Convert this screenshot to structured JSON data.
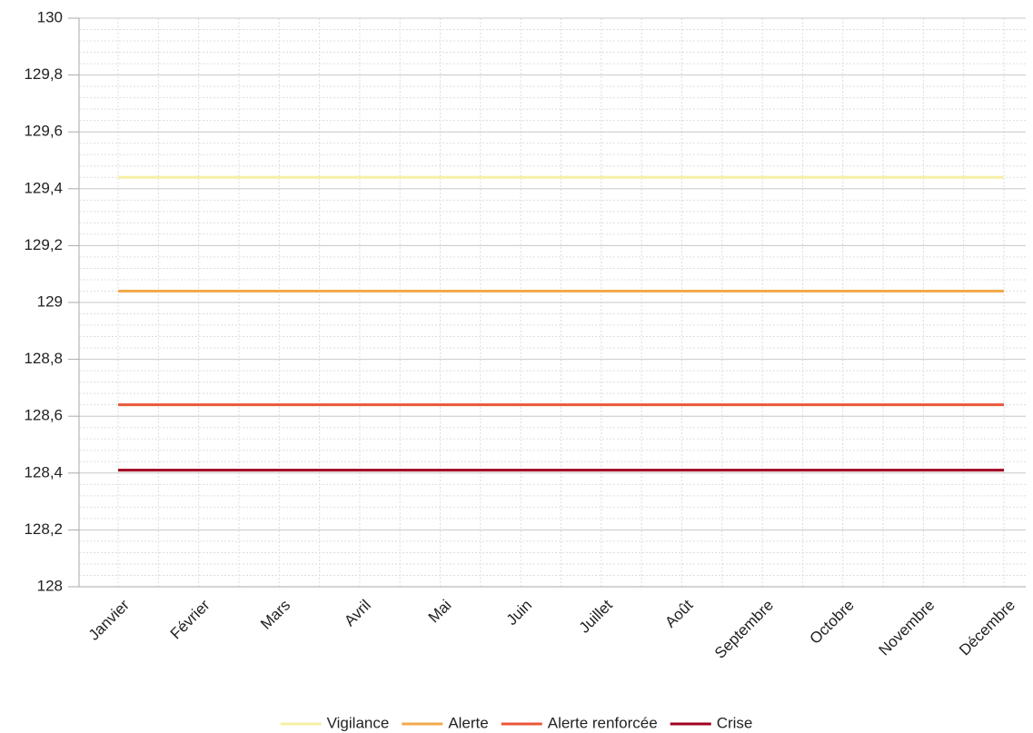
{
  "chart_data": {
    "type": "line",
    "categories": [
      "Janvier",
      "Février",
      "Mars",
      "Avril",
      "Mai",
      "Juin",
      "Juillet",
      "Août",
      "Septembre",
      "Octobre",
      "Novembre",
      "Décembre"
    ],
    "series": [
      {
        "name": "Vigilance",
        "color": "#f7efa6",
        "values": [
          129.44,
          129.44,
          129.44,
          129.44,
          129.44,
          129.44,
          129.44,
          129.44,
          129.44,
          129.44,
          129.44,
          129.44
        ]
      },
      {
        "name": "Alerte",
        "color": "#f2aa4c",
        "values": [
          129.04,
          129.04,
          129.04,
          129.04,
          129.04,
          129.04,
          129.04,
          129.04,
          129.04,
          129.04,
          129.04,
          129.04
        ]
      },
      {
        "name": "Alerte renforcée",
        "color": "#e9573a",
        "values": [
          128.64,
          128.64,
          128.64,
          128.64,
          128.64,
          128.64,
          128.64,
          128.64,
          128.64,
          128.64,
          128.64,
          128.64
        ]
      },
      {
        "name": "Crise",
        "color": "#a0001f",
        "values": [
          128.41,
          128.41,
          128.41,
          128.41,
          128.41,
          128.41,
          128.41,
          128.41,
          128.41,
          128.41,
          128.41,
          128.41
        ]
      }
    ],
    "ylim": [
      128,
      130
    ],
    "yticks": [
      128,
      {
        "value": 128.2,
        "label": "128,2"
      },
      {
        "value": 128.4,
        "label": "128,4"
      },
      {
        "value": 128.6,
        "label": "128,6"
      },
      {
        "value": 128.8,
        "label": "128,8"
      },
      129,
      {
        "value": 129.2,
        "label": "129,2"
      },
      {
        "value": 129.4,
        "label": "129,4"
      },
      {
        "value": 129.6,
        "label": "129,6"
      },
      {
        "value": 129.8,
        "label": "129,8"
      },
      130
    ],
    "grid": true,
    "legend": "bottom"
  }
}
